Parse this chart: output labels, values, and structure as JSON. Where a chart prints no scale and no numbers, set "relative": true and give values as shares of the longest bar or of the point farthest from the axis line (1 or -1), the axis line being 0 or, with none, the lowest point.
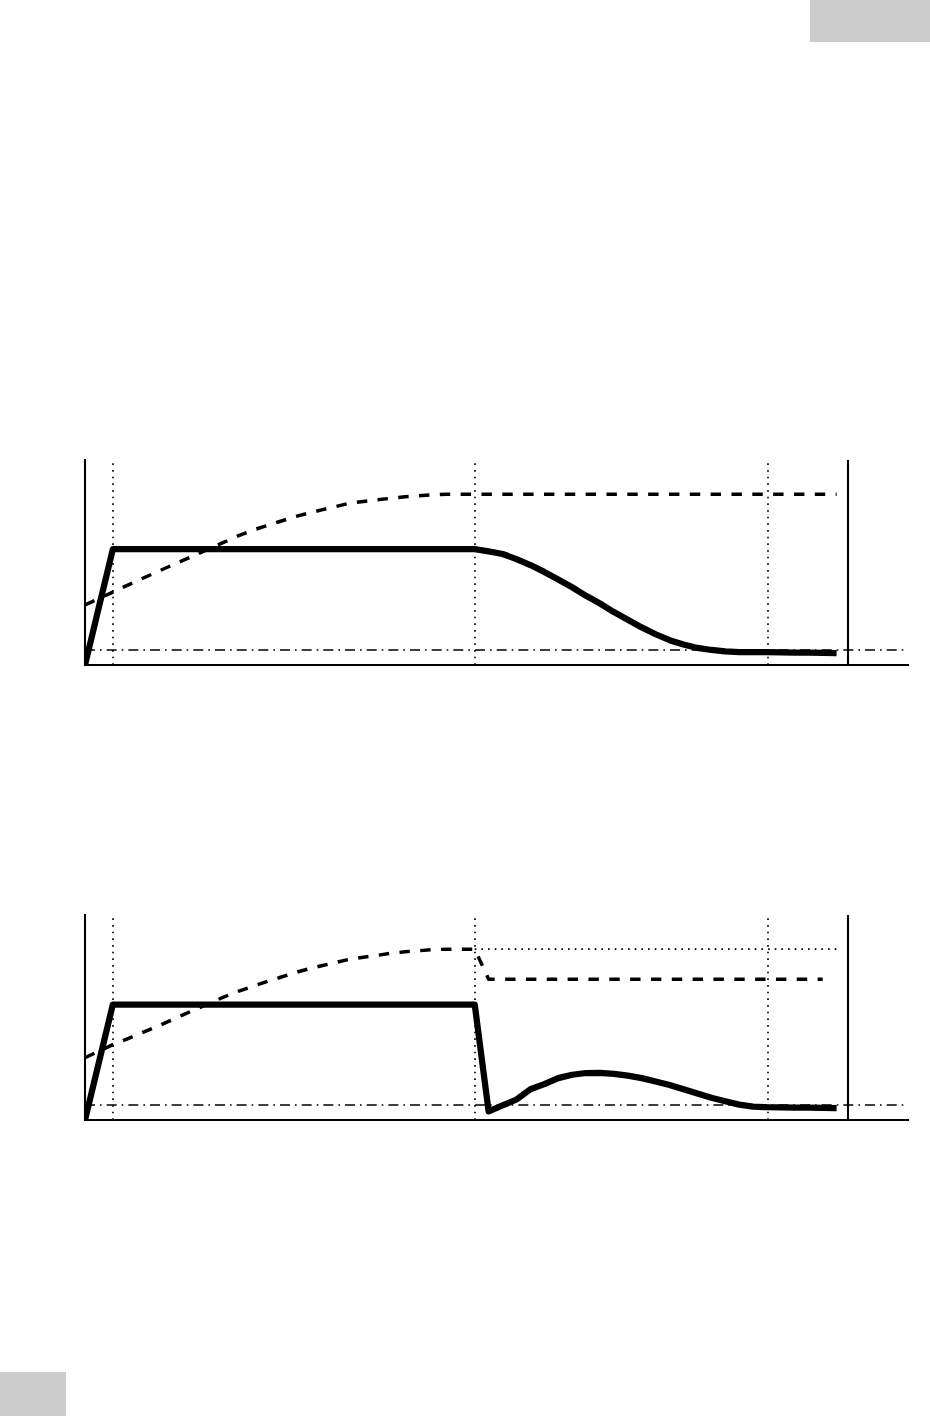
{
  "chart_data": [
    {
      "type": "line",
      "relative": true,
      "tick_labels": false,
      "grid": "x",
      "categories": [
        null,
        null,
        null,
        null,
        null,
        null,
        null,
        null,
        null,
        null,
        null,
        null,
        null,
        null,
        null,
        null,
        null,
        null,
        null,
        null,
        null,
        null,
        null,
        null,
        null,
        null,
        null,
        null,
        null,
        null,
        null,
        null,
        null,
        null,
        null,
        null,
        null,
        null,
        null,
        null,
        null,
        null,
        null,
        null,
        null,
        null,
        null,
        null,
        null,
        null,
        null,
        null,
        null,
        null,
        null
      ],
      "series": [
        {
          "color": "#000000",
          "line_style": "solid",
          "values": [
            0,
            0.339,
            0.678,
            0.678,
            0.678,
            0.678,
            0.678,
            0.678,
            0.678,
            0.678,
            0.678,
            0.678,
            0.678,
            0.678,
            0.678,
            0.678,
            0.678,
            0.678,
            0.678,
            0.678,
            0.678,
            0.678,
            0.678,
            0.678,
            0.678,
            0.678,
            0.678,
            0.678,
            0.678,
            0.665,
            0.65,
            0.62,
            0.585,
            0.545,
            0.5,
            0.455,
            0.405,
            0.36,
            0.31,
            0.265,
            0.22,
            0.18,
            0.145,
            0.12,
            0.1,
            0.088,
            0.08,
            0.076,
            0.075,
            0.075,
            0.074,
            0.073,
            0.072,
            0.071,
            0.07
          ]
        },
        {
          "color": "#000000",
          "line_style": "dashed",
          "values": [
            0.351,
            0.389,
            0.427,
            0.465,
            0.502,
            0.539,
            0.575,
            0.611,
            0.647,
            0.683,
            0.719,
            0.756,
            0.788,
            0.814,
            0.84,
            0.866,
            0.888,
            0.908,
            0.927,
            0.947,
            0.957,
            0.967,
            0.976,
            0.985,
            0.991,
            0.997,
            1,
            1,
            1,
            1,
            1,
            1,
            1,
            1,
            1,
            1,
            1,
            1,
            1,
            1,
            1,
            1,
            1,
            1,
            1,
            1,
            1,
            1,
            1,
            1,
            1,
            1,
            1,
            1,
            1
          ]
        }
      ],
      "ref_lines": [
        {
          "axis": "y",
          "value": 0.088,
          "line_style": "dashdot",
          "color": "#000000"
        }
      ]
    },
    {
      "type": "line",
      "relative": true,
      "tick_labels": false,
      "grid": "x",
      "categories": [
        null,
        null,
        null,
        null,
        null,
        null,
        null,
        null,
        null,
        null,
        null,
        null,
        null,
        null,
        null,
        null,
        null,
        null,
        null,
        null,
        null,
        null,
        null,
        null,
        null,
        null,
        null,
        null,
        null,
        null,
        null,
        null,
        null,
        null,
        null,
        null,
        null,
        null,
        null,
        null,
        null,
        null,
        null,
        null,
        null,
        null,
        null,
        null,
        null,
        null,
        null,
        null,
        null,
        null,
        null
      ],
      "series": [
        {
          "color": "#000000",
          "line_style": "solid",
          "values": [
            0,
            0.338,
            0.676,
            0.676,
            0.676,
            0.676,
            0.676,
            0.676,
            0.676,
            0.676,
            0.676,
            0.676,
            0.676,
            0.676,
            0.676,
            0.676,
            0.676,
            0.676,
            0.676,
            0.676,
            0.676,
            0.676,
            0.676,
            0.676,
            0.676,
            0.676,
            0.676,
            0.676,
            0.676,
            0.05,
            0.085,
            0.12,
            0.18,
            0.21,
            0.245,
            0.265,
            0.275,
            0.276,
            0.27,
            0.26,
            0.245,
            0.225,
            0.205,
            0.18,
            0.155,
            0.13,
            0.11,
            0.09,
            0.078,
            0.075,
            0.074,
            0.073,
            0.072,
            0.071,
            0.07
          ]
        },
        {
          "color": "#000000",
          "line_style": "dashed",
          "values": [
            0.365,
            0.403,
            0.441,
            0.474,
            0.507,
            0.541,
            0.577,
            0.614,
            0.65,
            0.686,
            0.721,
            0.753,
            0.781,
            0.808,
            0.834,
            0.861,
            0.883,
            0.903,
            0.922,
            0.941,
            0.953,
            0.964,
            0.976,
            0.985,
            0.991,
            0.997,
            1,
            1,
            1,
            0.824,
            0.824,
            0.824,
            0.824,
            0.824,
            0.824,
            0.824,
            0.824,
            0.824,
            0.824,
            0.824,
            0.824,
            0.824,
            0.824,
            0.824,
            0.824,
            0.824,
            0.824,
            0.824,
            0.824,
            0.824,
            0.824,
            0.824,
            0.824,
            0.824,
            null
          ]
        },
        {
          "color": "#000000",
          "line_style": "dotted",
          "values": [
            null,
            null,
            null,
            null,
            null,
            null,
            null,
            null,
            null,
            null,
            null,
            null,
            null,
            null,
            null,
            null,
            null,
            null,
            null,
            null,
            null,
            null,
            null,
            null,
            null,
            null,
            null,
            null,
            1,
            1,
            1,
            1,
            1,
            1,
            1,
            1,
            1,
            1,
            1,
            1,
            1,
            1,
            1,
            1,
            1,
            1,
            1,
            1,
            1,
            1,
            1,
            1,
            1,
            1,
            1
          ]
        }
      ],
      "ref_lines": [
        {
          "axis": "y",
          "value": 0.088,
          "line_style": "dashdot",
          "color": "#000000"
        }
      ]
    }
  ]
}
